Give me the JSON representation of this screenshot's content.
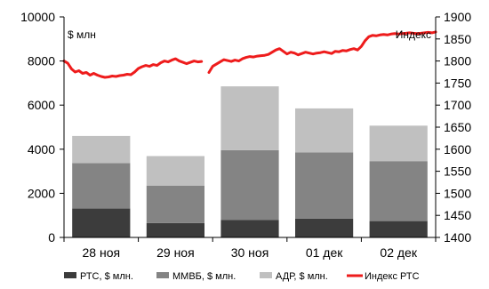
{
  "chart_data": {
    "type": "bar",
    "stacked": true,
    "categories": [
      "28 ноя",
      "29 ноя",
      "30 ноя",
      "01 дек",
      "02 дек"
    ],
    "left_axis": {
      "label": "$ млн",
      "ylim": [
        0,
        10000
      ],
      "ticks": [
        0,
        2000,
        4000,
        6000,
        8000,
        10000
      ]
    },
    "right_axis": {
      "label": "Индекс",
      "ylim": [
        1400,
        1900
      ],
      "ticks": [
        1400,
        1450,
        1500,
        1550,
        1600,
        1650,
        1700,
        1750,
        1800,
        1850,
        1900
      ]
    },
    "series": [
      {
        "name": "РТС, $ млн.",
        "kind": "bar",
        "axis": "left",
        "color": "#3c3c3c",
        "values": [
          1320,
          650,
          800,
          850,
          740
        ]
      },
      {
        "name": "ММВБ, $ млн.",
        "kind": "bar",
        "axis": "left",
        "color": "#848484",
        "values": [
          2050,
          1700,
          3160,
          3010,
          2720
        ]
      },
      {
        "name": "АДР, $ млн.",
        "kind": "bar",
        "axis": "left",
        "color": "#c0c0c0",
        "values": [
          1230,
          1340,
          2890,
          1990,
          1610
        ]
      },
      {
        "name": "Индекс РТС",
        "kind": "line",
        "axis": "right",
        "color": "#ee1c1c",
        "x": [
          0.0,
          0.05,
          0.1,
          0.15,
          0.2,
          0.25,
          0.3,
          0.35,
          0.4,
          0.45,
          0.5,
          0.55,
          0.6,
          0.65,
          0.7,
          0.75,
          0.8,
          0.85,
          0.9,
          0.95,
          1.0,
          1.05,
          1.1,
          1.15,
          1.2,
          1.25,
          1.3,
          1.35,
          1.4,
          1.45,
          1.5,
          1.55,
          1.6,
          1.65,
          1.7,
          1.75,
          1.8,
          1.85,
          1.9,
          1.95,
          2.0,
          2.05,
          2.1,
          2.15,
          2.2,
          2.25,
          2.3,
          2.35,
          2.4,
          2.45,
          2.5,
          2.55,
          2.6,
          2.65,
          2.7,
          2.75,
          2.8,
          2.85,
          2.9,
          2.95,
          3.0,
          3.05,
          3.1,
          3.15,
          3.2,
          3.25,
          3.3,
          3.35,
          3.4,
          3.45,
          3.5,
          3.55,
          3.6,
          3.65,
          3.7,
          3.75,
          3.8,
          3.85,
          3.9,
          3.95,
          4.0,
          4.05,
          4.1,
          4.15,
          4.2,
          4.25,
          4.3,
          4.35,
          4.4,
          4.45,
          4.5,
          4.55,
          4.6,
          4.65,
          4.7,
          4.75,
          4.8,
          4.85,
          4.9,
          4.95,
          5.0
        ],
        "values": [
          1800,
          1795,
          1782,
          1775,
          1778,
          1772,
          1774,
          1768,
          1772,
          1768,
          1765,
          1763,
          1764,
          1766,
          1765,
          1767,
          1768,
          1770,
          1769,
          1775,
          1783,
          1787,
          1790,
          1788,
          1792,
          1790,
          1796,
          1800,
          1798,
          1802,
          1805,
          1800,
          1797,
          1794,
          1797,
          1800,
          1798,
          1799,
          null,
          1774,
          1788,
          1793,
          1798,
          1803,
          1801,
          1799,
          1802,
          1800,
          1805,
          1808,
          1810,
          1809,
          1811,
          1812,
          1813,
          1815,
          1820,
          1825,
          1828,
          1822,
          1816,
          1820,
          1818,
          1814,
          1817,
          1820,
          1818,
          1816,
          1818,
          1819,
          1821,
          1819,
          1817,
          1822,
          1821,
          1824,
          1823,
          1826,
          1828,
          1825,
          1833,
          1846,
          1855,
          1858,
          1857,
          1859,
          1860,
          1859,
          1861,
          1862,
          1861,
          1862,
          1863,
          1864,
          1863,
          1862,
          1863,
          1864,
          1865,
          1864,
          1866
        ]
      }
    ],
    "grid": false,
    "legend_position": "bottom"
  }
}
